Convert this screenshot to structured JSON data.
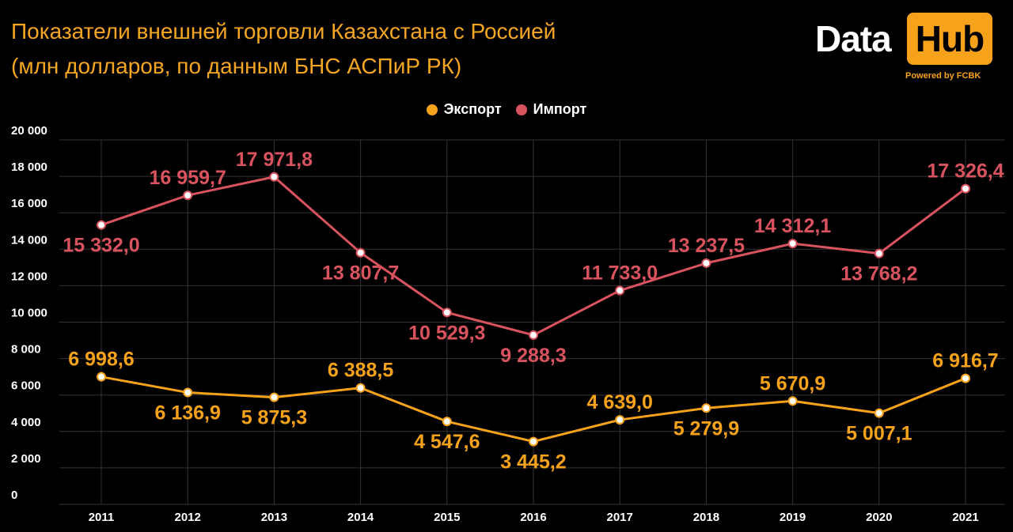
{
  "title": {
    "line1": "Показатели внешней торговли Казахстана с Россией",
    "line2": "(млн долларов, по данным БНС АСПиР РК)"
  },
  "logo": {
    "data_text": "Data",
    "hub_text": "Hub",
    "powered_text": "Powered by FCBK"
  },
  "colors": {
    "export": "#f7a21b",
    "import": "#d9535f",
    "background": "#000000",
    "grid": "#333333"
  },
  "chart_data": {
    "type": "line",
    "categories": [
      "2011",
      "2012",
      "2013",
      "2014",
      "2015",
      "2016",
      "2017",
      "2018",
      "2019",
      "2020",
      "2021"
    ],
    "ylim": [
      0,
      20000
    ],
    "yticks": [
      0,
      2000,
      4000,
      6000,
      8000,
      10000,
      12000,
      14000,
      16000,
      18000,
      20000
    ],
    "ytick_labels": [
      "0",
      "2 000",
      "4 000",
      "6 000",
      "8 000",
      "10 000",
      "12 000",
      "14 000",
      "16 000",
      "18 000",
      "20 000"
    ],
    "grid": true,
    "legend_position": "top-center",
    "series": [
      {
        "name": "Экспорт",
        "color": "#f7a21b",
        "values": [
          6998.6,
          6136.9,
          5875.3,
          6388.5,
          4547.6,
          3445.2,
          4639.0,
          5279.9,
          5670.9,
          5007.1,
          6916.7
        ],
        "labels": [
          "6 998,6",
          "6 136,9",
          "5 875,3",
          "6 388,5",
          "4 547,6",
          "3 445,2",
          "4 639,0",
          "5 279,9",
          "5 670,9",
          "5 007,1",
          "6 916,7"
        ],
        "label_positions": [
          "above",
          "below",
          "below",
          "above",
          "below",
          "below",
          "above",
          "below",
          "above",
          "below",
          "above"
        ]
      },
      {
        "name": "Импорт",
        "color": "#d9535f",
        "values": [
          15332.0,
          16959.7,
          17971.8,
          13807.7,
          10529.3,
          9288.3,
          11733.0,
          13237.5,
          14312.1,
          13768.2,
          17326.4
        ],
        "labels": [
          "15 332,0",
          "16 959,7",
          "17 971,8",
          "13 807,7",
          "10 529,3",
          "9 288,3",
          "11 733,0",
          "13 237,5",
          "14 312,1",
          "13 768,2",
          "17 326,4"
        ],
        "label_positions": [
          "below",
          "above",
          "above",
          "below",
          "below",
          "below",
          "above",
          "above",
          "above",
          "below",
          "above"
        ]
      }
    ]
  }
}
